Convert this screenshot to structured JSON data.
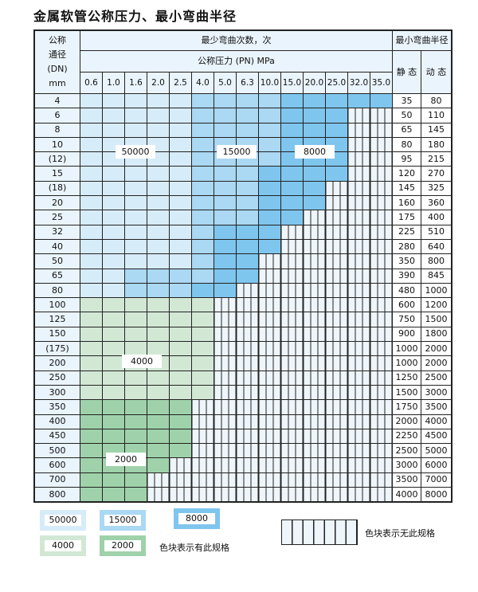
{
  "title": "金属软管公称压力、最小弯曲半径",
  "header": {
    "dn_label_lines": [
      "公称",
      "通径",
      "(DN)",
      "mm"
    ],
    "cycles_label": "最少弯曲次数，次",
    "pressure_label": "公称压力 (PN) MPa",
    "radius_label": "最小弯曲半径",
    "static_label": "静 态",
    "dynamic_label": "动 态",
    "pressures": [
      "0.6",
      "1.0",
      "1.6",
      "2.0",
      "2.5",
      "4.0",
      "5.0",
      "6.3",
      "10.0",
      "15.0",
      "20.0",
      "25.0",
      "32.0",
      "35.0"
    ]
  },
  "cell_legend_codes": {
    "L": "50000",
    "M": "15000",
    "D": "8000",
    "G": "4000",
    "H": "2000",
    ".": "无此规格"
  },
  "rows": [
    {
      "dn": "4",
      "static": "35",
      "dynamic": "80",
      "cells": "LLLLLMMMMDDDDD"
    },
    {
      "dn": "6",
      "static": "50",
      "dynamic": "110",
      "cells": "LLLLLMMMMDDD.."
    },
    {
      "dn": "8",
      "static": "65",
      "dynamic": "145",
      "cells": "LLLLLMMMMDDD.."
    },
    {
      "dn": "10",
      "static": "80",
      "dynamic": "180",
      "cells": "LLLLLMMMMDDD.."
    },
    {
      "dn": "(12)",
      "static": "95",
      "dynamic": "215",
      "cells": "LLLLLMMMMDDD.."
    },
    {
      "dn": "15",
      "static": "120",
      "dynamic": "270",
      "cells": "LLLLLMMMDDDD.."
    },
    {
      "dn": "(18)",
      "static": "145",
      "dynamic": "325",
      "cells": "LLLLLMMMDDD..."
    },
    {
      "dn": "20",
      "static": "160",
      "dynamic": "360",
      "cells": "LLLLLMMMDDD..."
    },
    {
      "dn": "25",
      "static": "175",
      "dynamic": "400",
      "cells": "LLLLLMMMDD...."
    },
    {
      "dn": "32",
      "static": "225",
      "dynamic": "510",
      "cells": "LLLLLMDDD....."
    },
    {
      "dn": "40",
      "static": "280",
      "dynamic": "640",
      "cells": "LLLLLMDDD....."
    },
    {
      "dn": "50",
      "static": "350",
      "dynamic": "800",
      "cells": "LLLLLMDD......"
    },
    {
      "dn": "65",
      "static": "390",
      "dynamic": "845",
      "cells": "LLMMMMDD......"
    },
    {
      "dn": "80",
      "static": "480",
      "dynamic": "1000",
      "cells": "LLMMMDD......."
    },
    {
      "dn": "100",
      "static": "600",
      "dynamic": "1200",
      "cells": "GGGGGG........"
    },
    {
      "dn": "125",
      "static": "750",
      "dynamic": "1500",
      "cells": "GGGGGG........"
    },
    {
      "dn": "150",
      "static": "900",
      "dynamic": "1800",
      "cells": "GGGGGG........"
    },
    {
      "dn": "(175)",
      "static": "1000",
      "dynamic": "2000",
      "cells": "GGGGGG........"
    },
    {
      "dn": "200",
      "static": "1000",
      "dynamic": "2000",
      "cells": "GGGGGG........"
    },
    {
      "dn": "250",
      "static": "1250",
      "dynamic": "2500",
      "cells": "GGGGGG........"
    },
    {
      "dn": "300",
      "static": "1500",
      "dynamic": "3000",
      "cells": "GGGGGG........"
    },
    {
      "dn": "350",
      "static": "1750",
      "dynamic": "3500",
      "cells": "HHHHH........."
    },
    {
      "dn": "400",
      "static": "2000",
      "dynamic": "4000",
      "cells": "HHHHH........."
    },
    {
      "dn": "450",
      "static": "2250",
      "dynamic": "4500",
      "cells": "HHHHH........."
    },
    {
      "dn": "500",
      "static": "2500",
      "dynamic": "5000",
      "cells": "HHHHH........."
    },
    {
      "dn": "600",
      "static": "3000",
      "dynamic": "6000",
      "cells": "HHHH.........."
    },
    {
      "dn": "700",
      "static": "3500",
      "dynamic": "7000",
      "cells": "HHH..........."
    },
    {
      "dn": "800",
      "static": "4000",
      "dynamic": "8000",
      "cells": "HHH..........."
    }
  ],
  "overlays": {
    "a": "50000",
    "b": "15000",
    "c": "8000",
    "d": "4000",
    "e": "2000"
  },
  "legend": {
    "items": [
      "50000",
      "15000",
      "8000",
      "4000",
      "2000"
    ],
    "colors": {
      "50000": "#d7ecf9",
      "15000": "#abd8f3",
      "8000": "#7fc6ee",
      "4000": "#d2e8d5",
      "2000": "#9fd2aa"
    },
    "has_spec_text": "色块表示有此规格",
    "no_spec_text": "色块表示无此规格"
  }
}
